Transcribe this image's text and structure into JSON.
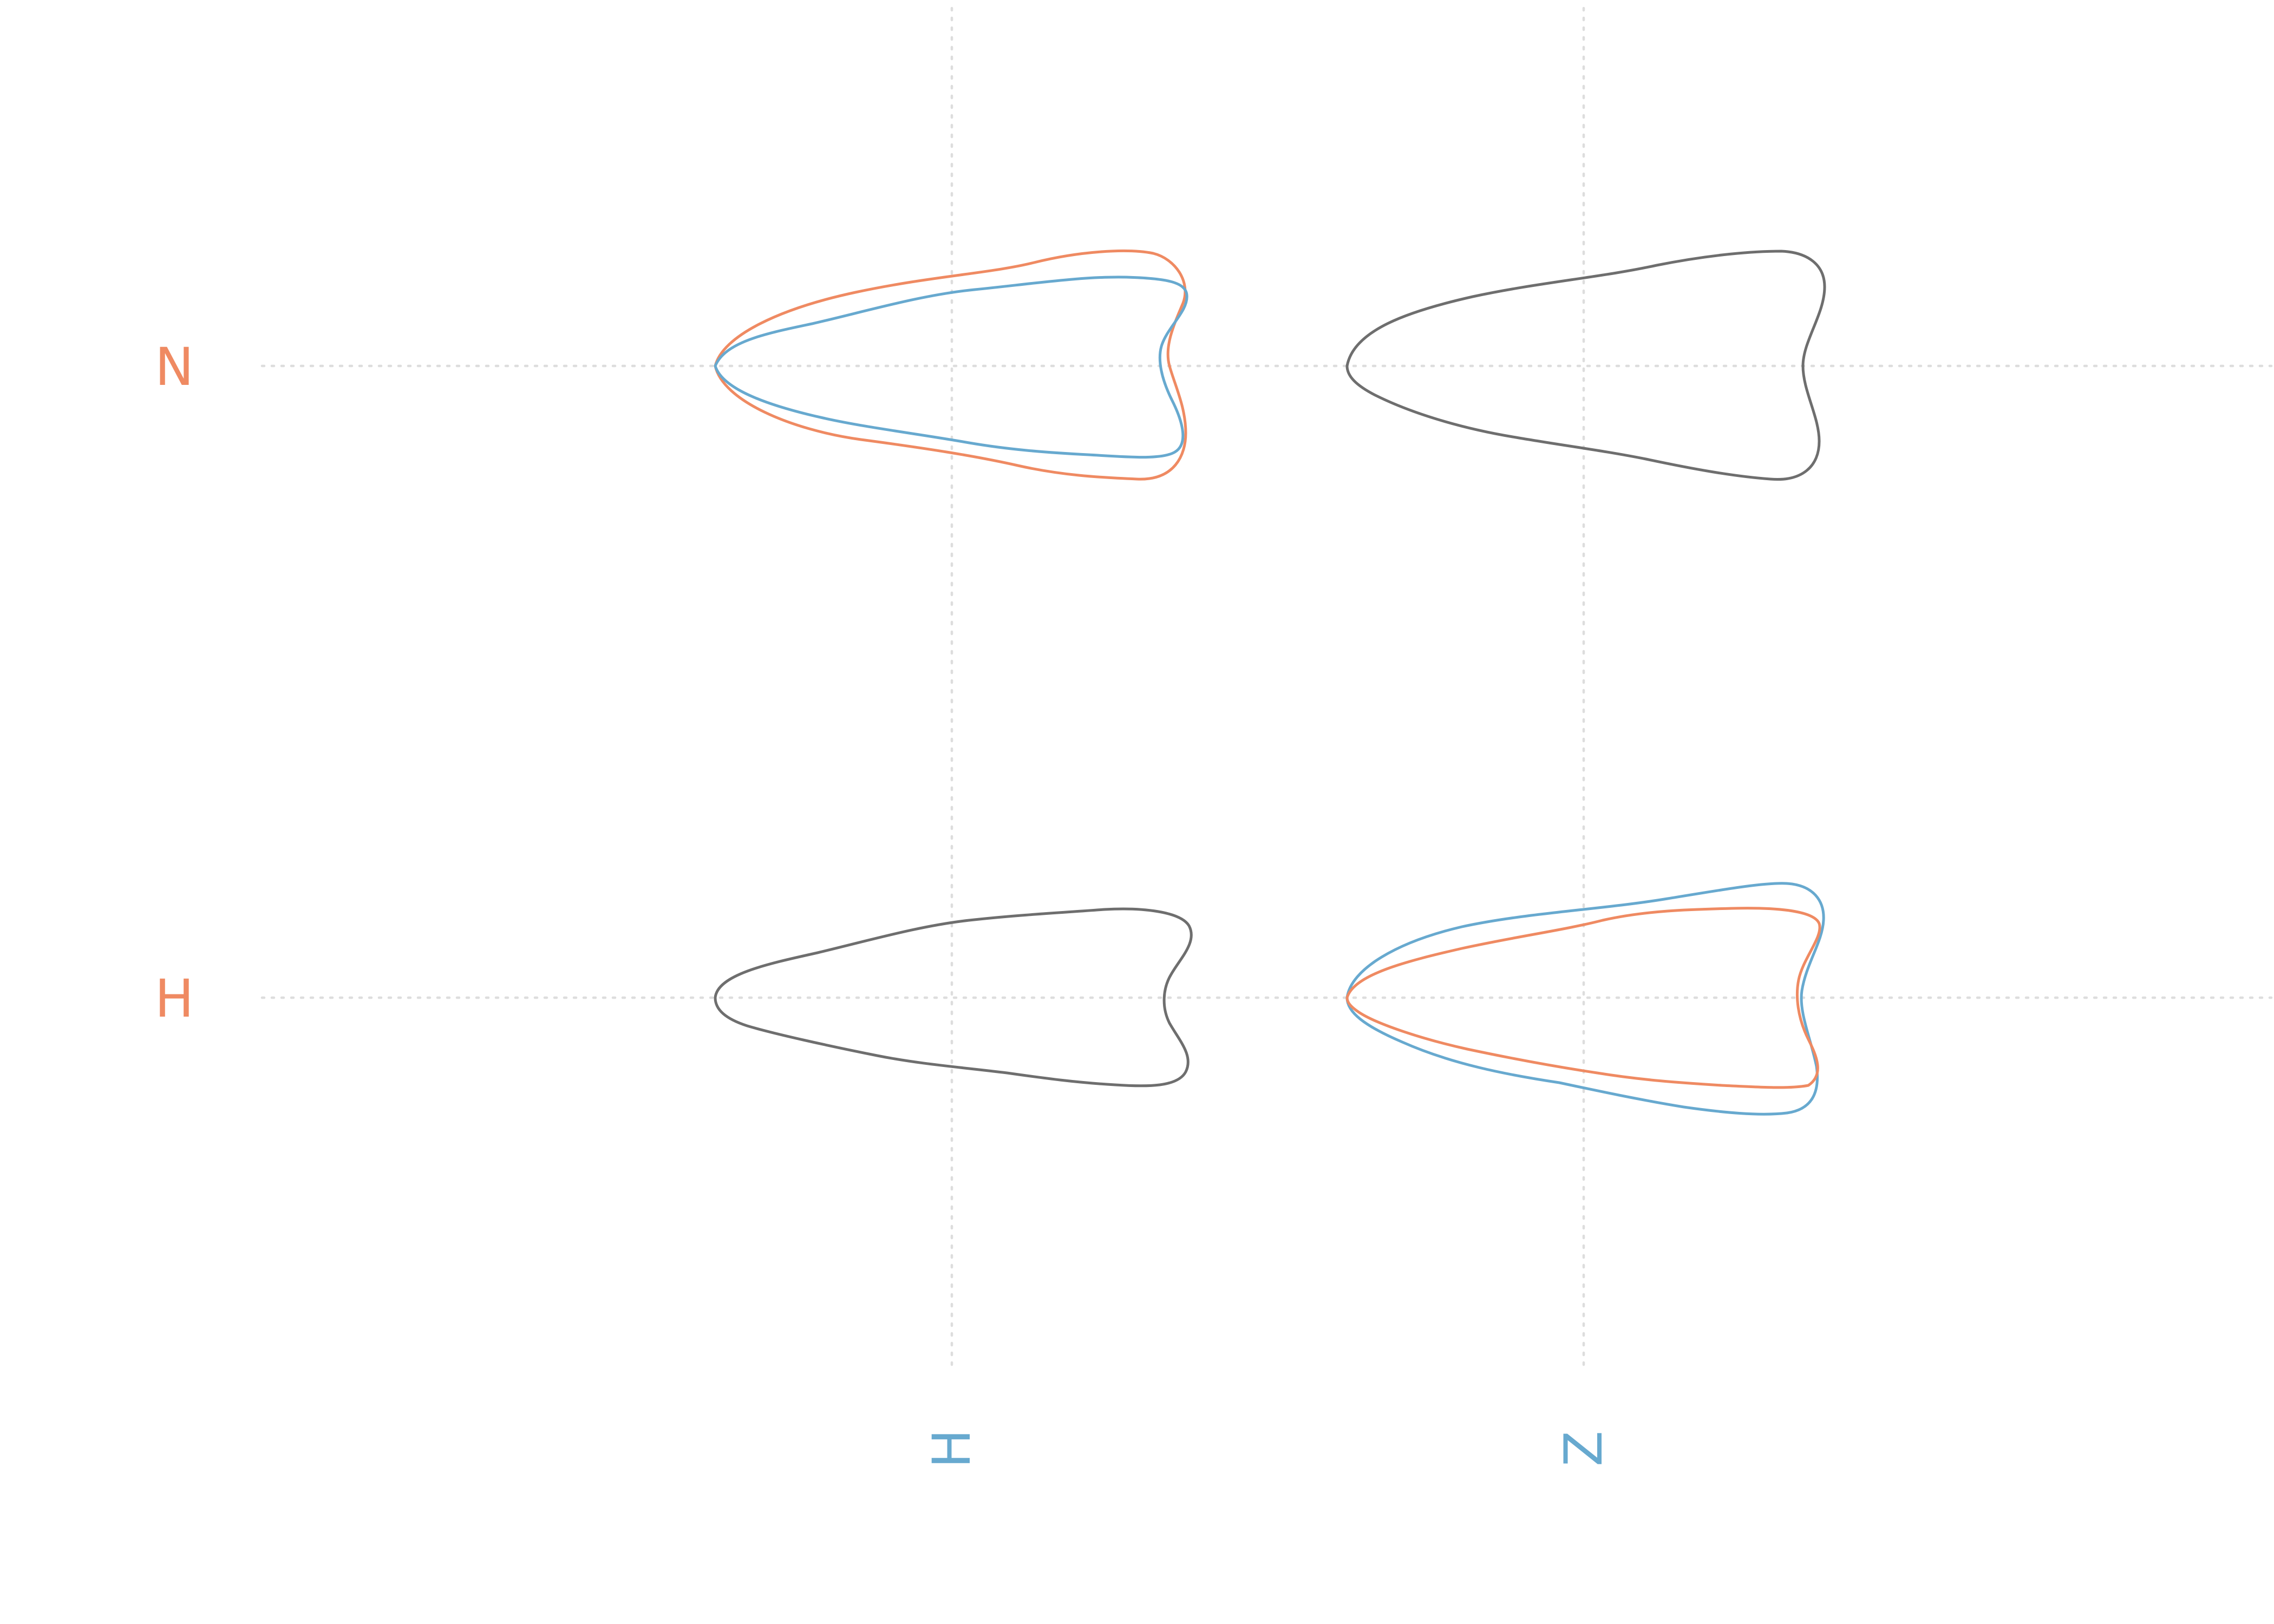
{
  "rows": [
    {
      "label": "N"
    },
    {
      "label": "H"
    }
  ],
  "columns": [
    {
      "label": "H"
    },
    {
      "label": "Z"
    }
  ],
  "colors": {
    "row_label": "#ef8a62",
    "column_label": "#67a9cf",
    "shape_orange": "#ef8a62",
    "shape_blue": "#67a9cf",
    "shape_gray": "#6e6e6e",
    "guide": "#dddddd"
  },
  "cells": [
    {
      "row": 0,
      "col": 0,
      "shapes": [
        {
          "color": "orange",
          "variant": "wide"
        },
        {
          "color": "blue",
          "variant": "narrow"
        }
      ]
    },
    {
      "row": 0,
      "col": 1,
      "shapes": [
        {
          "color": "gray",
          "variant": "wide"
        }
      ]
    },
    {
      "row": 1,
      "col": 0,
      "shapes": [
        {
          "color": "gray",
          "variant": "mid"
        }
      ]
    },
    {
      "row": 1,
      "col": 1,
      "shapes": [
        {
          "color": "blue",
          "variant": "tall"
        },
        {
          "color": "orange",
          "variant": "mid"
        }
      ]
    }
  ]
}
